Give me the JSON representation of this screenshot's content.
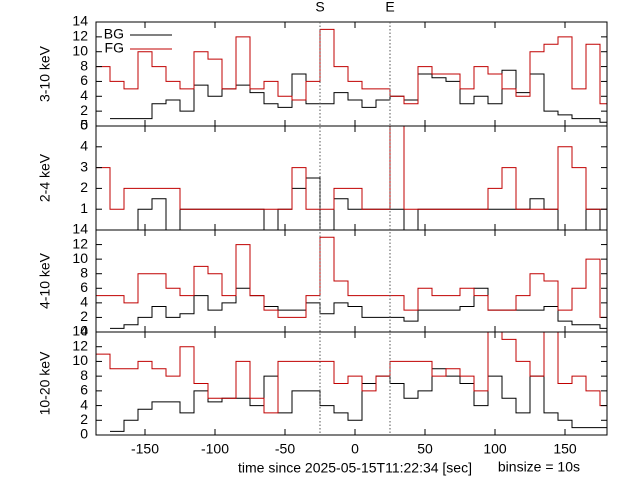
{
  "markers": [
    {
      "label": "S",
      "x": -25
    },
    {
      "label": "E",
      "x": 25
    }
  ],
  "xlabel": "time since 2025-05-15T11:22:34 [sec]",
  "note": "binsize = 10s",
  "chart_data": [
    {
      "type": "step",
      "ylabel": "3-10 keV",
      "xlim": [
        -185,
        180
      ],
      "ylim": [
        0,
        14
      ],
      "yticks": [
        0,
        2,
        4,
        6,
        8,
        10,
        12,
        14
      ],
      "x": [
        -180,
        -170,
        -160,
        -150,
        -140,
        -130,
        -120,
        -110,
        -100,
        -90,
        -80,
        -70,
        -60,
        -50,
        -40,
        -30,
        -20,
        -10,
        0,
        10,
        20,
        30,
        40,
        50,
        60,
        70,
        80,
        90,
        100,
        110,
        120,
        130,
        140,
        150,
        160,
        170,
        180
      ],
      "legend": "top-left",
      "series": [
        {
          "name": "BG",
          "color": "#000000",
          "values": [
            null,
            1,
            1,
            1,
            3,
            3.5,
            2,
            5.5,
            4,
            5,
            5.5,
            4.5,
            3,
            2.5,
            7,
            3,
            3,
            4.5,
            3.5,
            2.5,
            3.5,
            4,
            3.5,
            7,
            6.5,
            6,
            3,
            4,
            3,
            7.5,
            4.5,
            7,
            2,
            1.5,
            1,
            1,
            0.5
          ]
        },
        {
          "name": "FG",
          "color": "#c00000",
          "values": [
            8,
            6,
            5,
            10,
            8,
            6,
            5,
            10,
            9,
            5,
            12,
            5,
            6,
            4,
            3.5,
            6,
            13,
            8,
            6,
            5,
            5,
            4,
            3,
            8,
            7,
            7,
            5,
            8,
            7,
            5,
            4,
            10,
            11,
            12,
            5,
            11,
            3
          ]
        }
      ]
    },
    {
      "type": "step",
      "ylabel": "2-4 keV",
      "xlim": [
        -185,
        180
      ],
      "ylim": [
        0,
        5
      ],
      "yticks": [
        1,
        2,
        3,
        4,
        5
      ],
      "x": [
        -180,
        -170,
        -160,
        -150,
        -140,
        -130,
        -120,
        -110,
        -100,
        -90,
        -80,
        -70,
        -60,
        -50,
        -40,
        -30,
        -20,
        -10,
        0,
        10,
        20,
        30,
        40,
        50,
        60,
        70,
        80,
        90,
        100,
        110,
        120,
        130,
        140,
        150,
        160,
        170,
        180
      ],
      "series": [
        {
          "color": "#000000",
          "values": [
            0,
            0,
            0,
            1,
            1.5,
            0,
            1,
            1,
            1,
            1,
            1,
            1,
            0,
            1,
            2,
            2.5,
            0,
            1.5,
            1,
            1,
            1,
            1,
            0,
            1,
            1,
            1,
            1,
            1,
            1,
            1,
            1,
            1.5,
            1,
            0,
            0,
            1,
            0
          ]
        },
        {
          "color": "#c00000",
          "values": [
            3,
            1,
            2,
            2,
            2,
            2,
            1,
            1,
            1,
            1,
            1,
            1,
            1,
            1,
            3,
            1,
            1,
            2,
            2,
            1,
            1,
            5,
            1,
            1,
            1,
            1,
            1,
            1,
            2,
            3,
            1,
            1,
            1,
            4,
            3,
            1,
            1
          ]
        }
      ]
    },
    {
      "type": "step",
      "ylabel": "4-10 keV",
      "xlim": [
        -185,
        180
      ],
      "ylim": [
        0,
        14
      ],
      "yticks": [
        0,
        2,
        4,
        6,
        8,
        10,
        12,
        14
      ],
      "x": [
        -180,
        -170,
        -160,
        -150,
        -140,
        -130,
        -120,
        -110,
        -100,
        -90,
        -80,
        -70,
        -60,
        -50,
        -40,
        -30,
        -20,
        -10,
        0,
        10,
        20,
        30,
        40,
        50,
        60,
        70,
        80,
        90,
        100,
        110,
        120,
        130,
        140,
        150,
        160,
        170,
        180
      ],
      "series": [
        {
          "color": "#000000",
          "values": [
            null,
            0.5,
            1,
            2,
            3.5,
            2,
            2.5,
            5,
            3,
            4,
            6,
            5,
            3.5,
            3,
            3,
            4,
            2.5,
            4,
            3.5,
            2,
            2,
            2,
            1.5,
            3,
            3,
            3,
            3.5,
            6,
            3,
            3,
            3,
            3,
            3.5,
            1.5,
            1,
            1,
            0.5
          ]
        },
        {
          "color": "#c00000",
          "values": [
            5,
            5,
            4,
            8,
            8,
            6,
            5,
            9,
            8,
            5,
            12,
            5,
            3,
            2,
            2,
            5,
            13,
            7,
            5,
            5,
            5,
            5,
            3,
            6,
            5,
            5,
            6,
            5,
            3,
            3,
            5,
            8,
            7,
            3,
            6,
            10,
            2
          ]
        }
      ]
    },
    {
      "type": "step",
      "ylabel": "10-20 keV",
      "xlim": [
        -185,
        180
      ],
      "ylim": [
        0,
        14
      ],
      "yticks": [
        0,
        2,
        4,
        6,
        8,
        10,
        12,
        14
      ],
      "xticks": [
        -150,
        -100,
        -50,
        0,
        50,
        100,
        150
      ],
      "x": [
        -180,
        -170,
        -160,
        -150,
        -140,
        -130,
        -120,
        -110,
        -100,
        -90,
        -80,
        -70,
        -60,
        -50,
        -40,
        -30,
        -20,
        -10,
        0,
        10,
        20,
        30,
        40,
        50,
        60,
        70,
        80,
        90,
        100,
        110,
        120,
        130,
        140,
        150,
        160,
        170,
        180
      ],
      "series": [
        {
          "color": "#000000",
          "values": [
            null,
            0.5,
            2,
            3.5,
            4.5,
            4.5,
            3,
            6,
            4.5,
            5,
            5,
            4,
            8,
            3,
            6,
            6,
            4,
            3,
            2,
            7,
            8,
            7,
            5,
            6,
            9,
            8,
            7,
            4,
            8,
            5,
            3,
            8,
            3,
            2,
            1,
            1,
            1
          ]
        },
        {
          "color": "#c00000",
          "values": [
            11,
            9,
            9,
            10,
            9,
            8,
            12,
            7,
            5,
            5,
            10,
            5,
            3,
            10,
            10,
            10,
            10,
            7,
            8,
            6,
            8,
            10,
            10,
            10,
            8,
            9,
            8,
            6,
            14,
            13,
            10,
            8,
            14,
            7,
            8,
            6,
            4
          ]
        }
      ]
    }
  ]
}
